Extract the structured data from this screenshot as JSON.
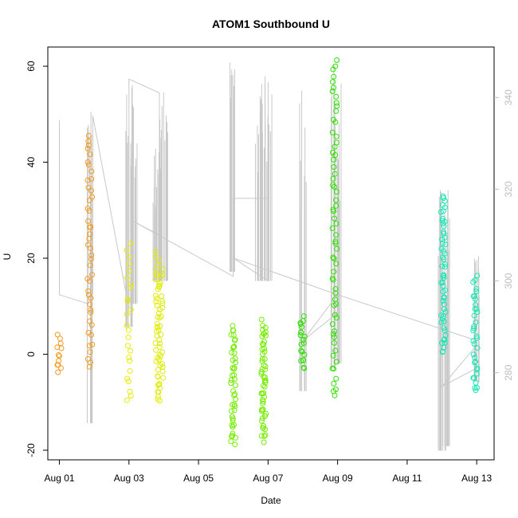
{
  "chart_data": {
    "type": "scatter",
    "title": "ATOM1 Southbound U",
    "xlabel": "Date",
    "ylabel": "U",
    "ylim": [
      -22,
      64
    ],
    "y2lim": [
      261,
      351
    ],
    "xlim": [
      "2023-07-31T16:00",
      "2023-08-13T12:00"
    ],
    "x_ticks": [
      {
        "date": "2023-08-01",
        "label": "Aug 01"
      },
      {
        "date": "2023-08-03",
        "label": "Aug 03"
      },
      {
        "date": "2023-08-05",
        "label": "Aug 05"
      },
      {
        "date": "2023-08-07",
        "label": "Aug 07"
      },
      {
        "date": "2023-08-09",
        "label": "Aug 09"
      },
      {
        "date": "2023-08-11",
        "label": "Aug 11"
      },
      {
        "date": "2023-08-13",
        "label": "Aug 13"
      }
    ],
    "y_ticks": [
      -20,
      0,
      20,
      40,
      60
    ],
    "y2_ticks": [
      280,
      300,
      320,
      340
    ],
    "grid": false,
    "legend": "none",
    "colors": {
      "secondary_line": "#c8c8c8",
      "right_axis": "#bdbdbd",
      "axis": "#000000"
    },
    "points": [
      {
        "t": "2023-08-01T00:00",
        "ymin": -4,
        "ymax": 4,
        "n": 12,
        "color": "#f39a1f"
      },
      {
        "t": "2023-08-01T21:00",
        "ymin": -3,
        "ymax": 46,
        "n": 45,
        "color": "#f39a1f"
      },
      {
        "t": "2023-08-03T00:00",
        "ymin": -10,
        "ymax": 23,
        "n": 25,
        "color": "#e8ec00"
      },
      {
        "t": "2023-08-03T20:00",
        "ymin": -10,
        "ymax": 21,
        "n": 40,
        "color": "#e8ec00"
      },
      {
        "t": "2023-08-03T22:00",
        "ymin": -8,
        "ymax": 18,
        "n": 25,
        "color": "#d9ec10"
      },
      {
        "t": "2023-08-06T00:00",
        "ymin": -19,
        "ymax": 6,
        "n": 45,
        "color": "#74ec00"
      },
      {
        "t": "2023-08-06T21:00",
        "ymin": -18,
        "ymax": 7,
        "n": 55,
        "color": "#74ec00"
      },
      {
        "t": "2023-08-08T00:00",
        "ymin": -3,
        "ymax": 8,
        "n": 20,
        "color": "#2ee000"
      },
      {
        "t": "2023-08-08T22:00",
        "ymin": -9,
        "ymax": 61,
        "n": 65,
        "color": "#2ee000"
      },
      {
        "t": "2023-08-12T01:00",
        "ymin": 0,
        "ymax": 33,
        "n": 55,
        "color": "#14e6b4"
      },
      {
        "t": "2023-08-12T23:00",
        "ymin": -8,
        "ymax": 16,
        "n": 35,
        "color": "#14e6b4"
      }
    ],
    "secondary_series": [
      {
        "t": "2023-08-01T00:00",
        "y2": 335
      },
      {
        "t": "2023-08-01T00:00",
        "y2": 297
      },
      {
        "t": "2023-08-01T20:00",
        "y2": 295
      },
      {
        "t": "2023-08-01T20:00",
        "y2": 334
      },
      {
        "t": "2023-08-01T23:00",
        "y2": 297
      },
      {
        "t": "2023-08-01T23:00",
        "y2": 336
      },
      {
        "t": "2023-08-03T00:00",
        "y2": 294
      },
      {
        "t": "2023-08-03T00:00",
        "y2": 344
      },
      {
        "t": "2023-08-03T21:00",
        "y2": 341
      },
      {
        "t": "2023-08-03T21:00",
        "y2": 310
      },
      {
        "t": "2023-08-03T03:00",
        "y2": 313
      },
      {
        "t": "2023-08-06T00:00",
        "y2": 301
      },
      {
        "t": "2023-08-06T00:00",
        "y2": 318
      },
      {
        "t": "2023-08-07T00:00",
        "y2": 318
      },
      {
        "t": "2023-08-07T00:00",
        "y2": 300
      },
      {
        "t": "2023-08-06T00:00",
        "y2": 305
      },
      {
        "t": "2023-08-09T00:00",
        "y2": 297
      },
      {
        "t": "2023-08-09T00:00",
        "y2": 293
      },
      {
        "t": "2023-08-08T00:00",
        "y2": 287
      },
      {
        "t": "2023-08-09T00:00",
        "y2": 297
      },
      {
        "t": "2023-08-13T00:00",
        "y2": 287
      },
      {
        "t": "2023-08-13T00:00",
        "y2": 281
      },
      {
        "t": "2023-08-12T00:00",
        "y2": 277
      },
      {
        "t": "2023-08-13T00:00",
        "y2": 286
      }
    ],
    "secondary_spikes": [
      {
        "t": "2023-08-01T21:00",
        "ymin": 269,
        "ymax": 337
      },
      {
        "t": "2023-08-03T00:00",
        "ymin": 290,
        "ymax": 346
      },
      {
        "t": "2023-08-03T03:00",
        "ymin": 295,
        "ymax": 341
      },
      {
        "t": "2023-08-03T18:00",
        "ymin": 300,
        "ymax": 328
      },
      {
        "t": "2023-08-03T21:00",
        "ymin": 300,
        "ymax": 336
      },
      {
        "t": "2023-08-04T00:00",
        "ymin": 300,
        "ymax": 342
      },
      {
        "t": "2023-08-06T00:00",
        "ymin": 302,
        "ymax": 349
      },
      {
        "t": "2023-08-06T18:00",
        "ymin": 300,
        "ymax": 343
      },
      {
        "t": "2023-08-06T21:00",
        "ymin": 300,
        "ymax": 345
      },
      {
        "t": "2023-08-07T00:00",
        "ymin": 300,
        "ymax": 347
      },
      {
        "t": "2023-08-08T00:00",
        "ymin": 276,
        "ymax": 342
      },
      {
        "t": "2023-08-08T21:00",
        "ymin": 281,
        "ymax": 348
      },
      {
        "t": "2023-08-09T00:00",
        "ymin": 282,
        "ymax": 345
      },
      {
        "t": "2023-08-12T00:00",
        "ymin": 263,
        "ymax": 321
      },
      {
        "t": "2023-08-12T03:00",
        "ymin": 264,
        "ymax": 320
      },
      {
        "t": "2023-08-13T00:00",
        "ymin": 278,
        "ymax": 306
      }
    ]
  }
}
